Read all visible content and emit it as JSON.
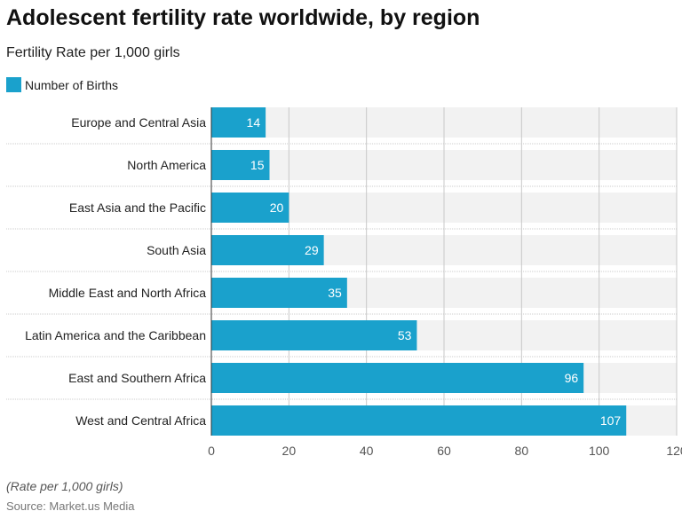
{
  "chart_data": {
    "type": "bar",
    "orientation": "horizontal",
    "title": "Adolescent fertility rate worldwide, by region",
    "subtitle": "Fertility Rate per 1,000 girls",
    "categories": [
      "Europe and Central Asia",
      "North America",
      "East Asia and the Pacific",
      "South Asia",
      "Middle East and North Africa",
      "Latin America and the Caribbean",
      "East and Southern Africa",
      "West and Central Africa"
    ],
    "series": [
      {
        "name": "Number of Births",
        "values": [
          14,
          15,
          20,
          29,
          35,
          53,
          96,
          107
        ],
        "color": "#1aa1cc"
      }
    ],
    "xlim": [
      0,
      120
    ],
    "xticks": [
      0,
      20,
      40,
      60,
      80,
      100,
      120
    ],
    "grid": true,
    "legend": "top-left",
    "note": "(Rate per 1,000 girls)",
    "source": "Source: Market.us Media"
  }
}
